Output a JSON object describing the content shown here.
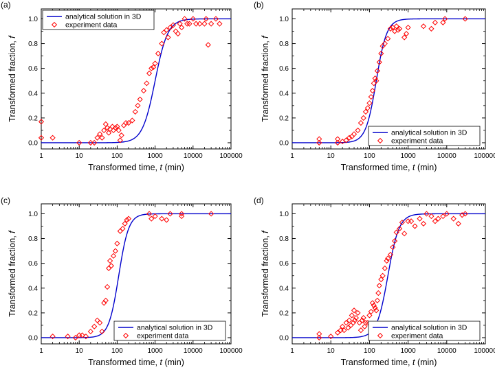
{
  "chart_data": [
    {
      "panel": "(a)",
      "type": "line+scatter",
      "xscale": "log",
      "xlim": [
        1,
        100000
      ],
      "ylim": [
        -0.05,
        1.08
      ],
      "xticks": [
        "1",
        "10",
        "100",
        "1000",
        "10000",
        "100000"
      ],
      "yticks": [
        "0.0",
        "0.2",
        "0.4",
        "0.6",
        "0.8",
        "1.0"
      ],
      "xlabel": "Transformed time, ",
      "xlabel_var": "t",
      "xlabel_unit": " (min)",
      "ylabel": "Transformed fraction, ",
      "ylabel_var": "f",
      "legend_position": "top-left",
      "curve": {
        "name": "analytical solution in 3D",
        "color": "#0000cc",
        "center": 1000,
        "slope": 2.6
      },
      "series": [
        {
          "name": "experiment data",
          "color": "#ff0000",
          "marker": "diamond-open",
          "points": [
            [
              1,
              0.17
            ],
            [
              1,
              0.04
            ],
            [
              2,
              0.04
            ],
            [
              10,
              0
            ],
            [
              20,
              0
            ],
            [
              25,
              0
            ],
            [
              30,
              0.04
            ],
            [
              35,
              0.07
            ],
            [
              40,
              0.04
            ],
            [
              45,
              0.1
            ],
            [
              50,
              0.15
            ],
            [
              55,
              0.12
            ],
            [
              60,
              0.08
            ],
            [
              65,
              0.11
            ],
            [
              75,
              0.13
            ],
            [
              80,
              0.1
            ],
            [
              90,
              0.12
            ],
            [
              100,
              0.13
            ],
            [
              110,
              0.1
            ],
            [
              120,
              0.02
            ],
            [
              130,
              0.06
            ],
            [
              150,
              0.14
            ],
            [
              170,
              0.16
            ],
            [
              200,
              0.16
            ],
            [
              250,
              0.18
            ],
            [
              300,
              0.25
            ],
            [
              350,
              0.3
            ],
            [
              400,
              0.35
            ],
            [
              500,
              0.42
            ],
            [
              600,
              0.48
            ],
            [
              700,
              0.56
            ],
            [
              800,
              0.6
            ],
            [
              900,
              0.61
            ],
            [
              1000,
              0.64
            ],
            [
              1200,
              0.72
            ],
            [
              1500,
              0.8
            ],
            [
              1700,
              0.89
            ],
            [
              2000,
              0.91
            ],
            [
              2200,
              0.85
            ],
            [
              2500,
              0.93
            ],
            [
              3000,
              0.95
            ],
            [
              3500,
              0.9
            ],
            [
              4000,
              0.88
            ],
            [
              4500,
              0.96
            ],
            [
              5000,
              0.93
            ],
            [
              6000,
              1
            ],
            [
              7000,
              0.96
            ],
            [
              8000,
              0.96
            ],
            [
              10000,
              1
            ],
            [
              12000,
              0.96
            ],
            [
              15000,
              0.96
            ],
            [
              20000,
              0.96
            ],
            [
              22000,
              1
            ],
            [
              25000,
              0.79
            ],
            [
              30000,
              0.96
            ],
            [
              40000,
              1
            ],
            [
              50000,
              0.96
            ]
          ]
        }
      ]
    },
    {
      "panel": "(b)",
      "type": "line+scatter",
      "xscale": "log",
      "xlim": [
        1,
        100000
      ],
      "ylim": [
        -0.05,
        1.08
      ],
      "xticks": [
        "1",
        "10",
        "100",
        "1000",
        "10000",
        "100000"
      ],
      "yticks": [
        "0.0",
        "0.2",
        "0.4",
        "0.6",
        "0.8",
        "1.0"
      ],
      "xlabel": "Transformed time, ",
      "xlabel_var": "t",
      "xlabel_unit": " (min)",
      "ylabel": "Transformed fraction, ",
      "ylabel_var": "f",
      "legend_position": "bottom-right",
      "curve": {
        "name": "analytical solution in 3D",
        "color": "#0000cc",
        "center": 150,
        "slope": 3.2
      },
      "series": [
        {
          "name": "experiment data",
          "color": "#ff0000",
          "marker": "diamond-open",
          "points": [
            [
              5,
              0.03
            ],
            [
              5,
              0
            ],
            [
              15,
              0.03
            ],
            [
              15,
              0
            ],
            [
              20,
              0.01
            ],
            [
              25,
              0.02
            ],
            [
              30,
              0.04
            ],
            [
              35,
              0.05
            ],
            [
              40,
              0.07
            ],
            [
              50,
              0.1
            ],
            [
              60,
              0.16
            ],
            [
              70,
              0.2
            ],
            [
              80,
              0.25
            ],
            [
              90,
              0.28
            ],
            [
              100,
              0.32
            ],
            [
              110,
              0.37
            ],
            [
              120,
              0.42
            ],
            [
              130,
              0.48
            ],
            [
              140,
              0.52
            ],
            [
              150,
              0.5
            ],
            [
              160,
              0.58
            ],
            [
              180,
              0.65
            ],
            [
              200,
              0.72
            ],
            [
              220,
              0.78
            ],
            [
              250,
              0.8
            ],
            [
              300,
              0.84
            ],
            [
              350,
              0.92
            ],
            [
              400,
              0.93
            ],
            [
              450,
              0.9
            ],
            [
              500,
              0.94
            ],
            [
              550,
              0.91
            ],
            [
              600,
              0.92
            ],
            [
              800,
              0.85
            ],
            [
              900,
              0.88
            ],
            [
              1000,
              0.93
            ],
            [
              2500,
              0.94
            ],
            [
              4000,
              0.92
            ],
            [
              5000,
              0.97
            ],
            [
              8000,
              0.97
            ],
            [
              9000,
              1
            ],
            [
              30000,
              1
            ]
          ]
        }
      ]
    },
    {
      "panel": "(c)",
      "type": "line+scatter",
      "xscale": "log",
      "xlim": [
        1,
        100000
      ],
      "ylim": [
        -0.05,
        1.08
      ],
      "xticks": [
        "1",
        "10",
        "100",
        "1000",
        "10000",
        "100000"
      ],
      "yticks": [
        "0.0",
        "0.2",
        "0.4",
        "0.6",
        "0.8",
        "1.0"
      ],
      "xlabel": "Transformed time, ",
      "xlabel_var": "t",
      "xlabel_unit": " (min)",
      "ylabel": "Transformed fraction, ",
      "ylabel_var": "f",
      "legend_position": "bottom-right",
      "curve": {
        "name": "analytical solution in 3D",
        "color": "#0000cc",
        "center": 110,
        "slope": 3.3
      },
      "series": [
        {
          "name": "experiment data",
          "color": "#ff0000",
          "marker": "diamond-open",
          "points": [
            [
              2,
              0.01
            ],
            [
              5,
              0.01
            ],
            [
              8,
              0
            ],
            [
              10,
              0.02
            ],
            [
              12,
              0.02
            ],
            [
              15,
              0.01
            ],
            [
              20,
              0.05
            ],
            [
              25,
              0.09
            ],
            [
              30,
              0.14
            ],
            [
              35,
              0.12
            ],
            [
              40,
              0.05
            ],
            [
              45,
              0.28
            ],
            [
              50,
              0.3
            ],
            [
              55,
              0.41
            ],
            [
              60,
              0.56
            ],
            [
              65,
              0.62
            ],
            [
              70,
              0.58
            ],
            [
              80,
              0.66
            ],
            [
              90,
              0.7
            ],
            [
              100,
              0.76
            ],
            [
              120,
              0.86
            ],
            [
              140,
              0.88
            ],
            [
              160,
              0.92
            ],
            [
              180,
              0.95
            ],
            [
              200,
              0.96
            ],
            [
              700,
              1
            ],
            [
              800,
              0.96
            ],
            [
              1000,
              0.98
            ],
            [
              1500,
              0.96
            ],
            [
              2000,
              0.95
            ],
            [
              2500,
              1
            ],
            [
              5000,
              0.98
            ],
            [
              5000,
              1
            ],
            [
              30000,
              1
            ]
          ]
        }
      ]
    },
    {
      "panel": "(d)",
      "type": "line+scatter",
      "xscale": "log",
      "xlim": [
        1,
        100000
      ],
      "ylim": [
        -0.05,
        1.08
      ],
      "xticks": [
        "1",
        "10",
        "100",
        "1000",
        "10000",
        "100000"
      ],
      "yticks": [
        "0.0",
        "0.2",
        "0.4",
        "0.6",
        "0.8",
        "1.0"
      ],
      "xlabel": "Transformed time, ",
      "xlabel_var": "t",
      "xlabel_unit": " (min)",
      "ylabel": "Transformed fraction, ",
      "ylabel_var": "f",
      "legend_position": "bottom-right",
      "curve": {
        "name": "analytical solution in 3D",
        "color": "#0000cc",
        "center": 300,
        "slope": 3.0
      },
      "series": [
        {
          "name": "experiment data",
          "color": "#ff0000",
          "marker": "diamond-open",
          "points": [
            [
              5,
              0.03
            ],
            [
              5,
              0
            ],
            [
              10,
              0.01
            ],
            [
              15,
              0.04
            ],
            [
              18,
              0.06
            ],
            [
              20,
              0.09
            ],
            [
              22,
              0.06
            ],
            [
              25,
              0.12
            ],
            [
              28,
              0.08
            ],
            [
              30,
              0.14
            ],
            [
              33,
              0.1
            ],
            [
              35,
              0.18
            ],
            [
              38,
              0.12
            ],
            [
              40,
              0.22
            ],
            [
              42,
              0.14
            ],
            [
              45,
              0.16
            ],
            [
              50,
              0.2
            ],
            [
              55,
              0.12
            ],
            [
              60,
              0.06
            ],
            [
              65,
              0.14
            ],
            [
              70,
              0.16
            ],
            [
              75,
              0.09
            ],
            [
              80,
              0.12
            ],
            [
              90,
              0.12
            ],
            [
              100,
              0.18
            ],
            [
              110,
              0.21
            ],
            [
              120,
              0.28
            ],
            [
              130,
              0.26
            ],
            [
              140,
              0.24
            ],
            [
              150,
              0.22
            ],
            [
              160,
              0.3
            ],
            [
              170,
              0.36
            ],
            [
              180,
              0.42
            ],
            [
              200,
              0.47
            ],
            [
              220,
              0.5
            ],
            [
              250,
              0.56
            ],
            [
              280,
              0.62
            ],
            [
              300,
              0.64
            ],
            [
              350,
              0.67
            ],
            [
              400,
              0.73
            ],
            [
              450,
              0.78
            ],
            [
              500,
              0.85
            ],
            [
              600,
              0.88
            ],
            [
              700,
              0.93
            ],
            [
              800,
              0.84
            ],
            [
              1000,
              0.94
            ],
            [
              1200,
              0.94
            ],
            [
              1500,
              0.9
            ],
            [
              2000,
              0.96
            ],
            [
              2500,
              0.92
            ],
            [
              3000,
              1
            ],
            [
              4000,
              0.98
            ],
            [
              5000,
              0.94
            ],
            [
              6000,
              0.96
            ],
            [
              8000,
              0.98
            ],
            [
              10000,
              1
            ],
            [
              15000,
              0.96
            ],
            [
              20000,
              0.92
            ],
            [
              25000,
              0.99
            ],
            [
              30000,
              1
            ]
          ]
        }
      ]
    }
  ]
}
